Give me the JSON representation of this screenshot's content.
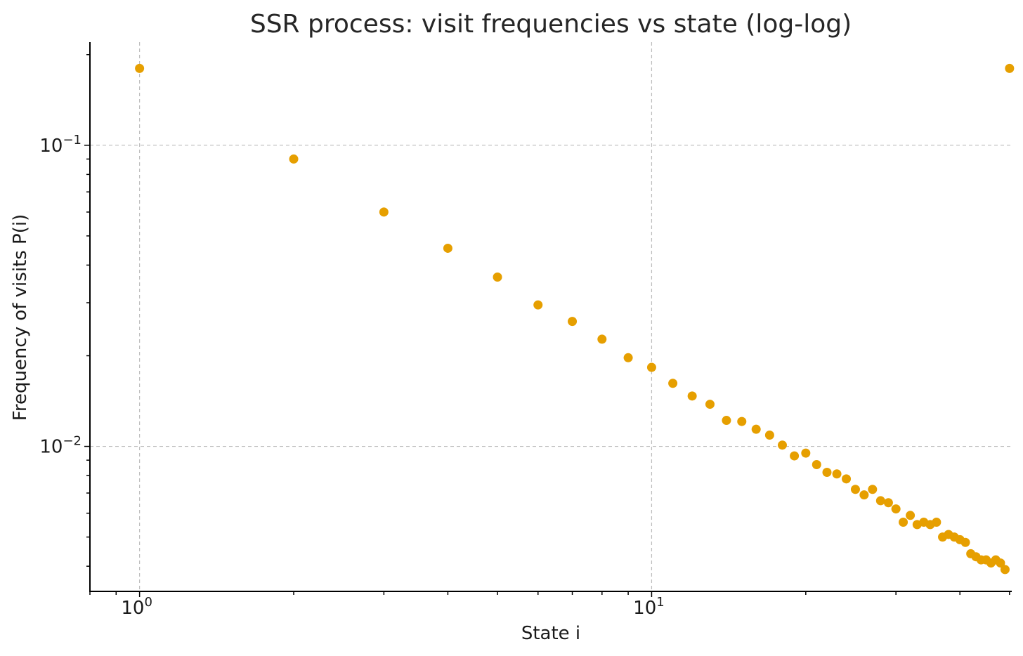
{
  "chart_data": {
    "type": "scatter",
    "title": "SSR process: visit frequencies vs state (log-log)",
    "xlabel": "State i",
    "ylabel": "Frequency of visits P(i)",
    "xscale": "log",
    "yscale": "log",
    "xlim": [
      0.8,
      50.5
    ],
    "ylim": [
      0.0033,
      0.22
    ],
    "grid": true,
    "marker_color": "#E69F00",
    "x_major_ticks": [
      {
        "value": 1,
        "base": "10",
        "exp": "0"
      },
      {
        "value": 10,
        "base": "10",
        "exp": "1"
      }
    ],
    "y_major_ticks": [
      {
        "value": 0.1,
        "base": "10",
        "exp": "−1"
      },
      {
        "value": 0.01,
        "base": "10",
        "exp": "−2"
      }
    ],
    "series": [
      {
        "name": "P(i)",
        "x": [
          1,
          2,
          3,
          4,
          5,
          6,
          7,
          8,
          9,
          10,
          11,
          12,
          13,
          14,
          15,
          16,
          17,
          18,
          19,
          20,
          21,
          22,
          23,
          24,
          25,
          26,
          27,
          28,
          29,
          30,
          31,
          32,
          33,
          34,
          35,
          36,
          37,
          38,
          39,
          40,
          41,
          42,
          43,
          44,
          45,
          46,
          47,
          48,
          49,
          50
        ],
        "y": [
          0.18,
          0.09,
          0.06,
          0.0455,
          0.0365,
          0.0295,
          0.026,
          0.0227,
          0.0197,
          0.0183,
          0.0162,
          0.0147,
          0.0138,
          0.0122,
          0.0121,
          0.0114,
          0.0109,
          0.0101,
          0.0093,
          0.0095,
          0.0087,
          0.0082,
          0.0081,
          0.0078,
          0.0072,
          0.0069,
          0.0072,
          0.0066,
          0.0065,
          0.0062,
          0.0056,
          0.0059,
          0.0055,
          0.0056,
          0.0055,
          0.0056,
          0.005,
          0.0051,
          0.005,
          0.0049,
          0.0048,
          0.0044,
          0.0043,
          0.0042,
          0.0042,
          0.0041,
          0.0042,
          0.0041,
          0.0039,
          0.18
        ]
      }
    ]
  }
}
